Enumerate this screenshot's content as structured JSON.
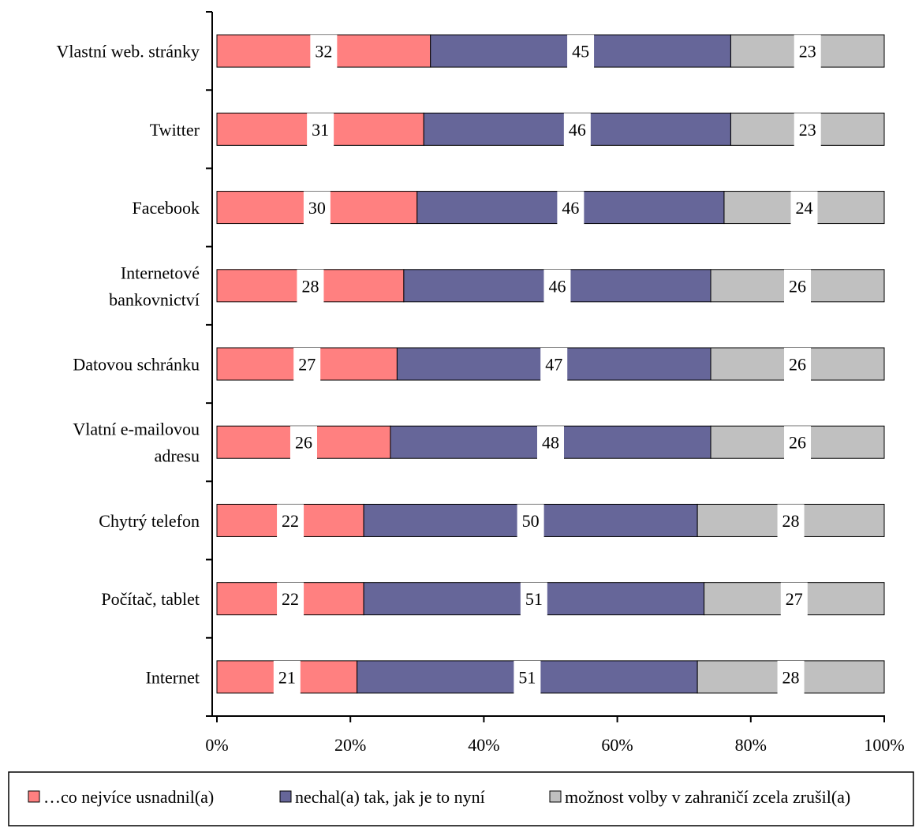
{
  "chart_data": {
    "type": "bar",
    "orientation": "horizontal",
    "stacked": "percent",
    "categories": [
      "Vlastní web. stránky",
      "Twitter",
      "Facebook",
      "Internetové bankovnictví",
      "Datovou schránku",
      "Vlatní e-mailovou adresu",
      "Chytrý telefon",
      "Počítač, tablet",
      "Internet"
    ],
    "category_lines": [
      [
        "Vlastní web. stránky"
      ],
      [
        "Twitter"
      ],
      [
        "Facebook"
      ],
      [
        "Internetové",
        "bankovnictví"
      ],
      [
        "Datovou schránku"
      ],
      [
        "Vlatní e-mailovou",
        "adresu"
      ],
      [
        "Chytrý telefon"
      ],
      [
        "Počítač, tablet"
      ],
      [
        "Internet"
      ]
    ],
    "series": [
      {
        "name": "…co nejvíce usnadnil(a)",
        "color": "#ff8080",
        "values": [
          32,
          31,
          30,
          28,
          27,
          26,
          22,
          22,
          21
        ]
      },
      {
        "name": "nechal(a) tak, jak je to nyní",
        "color": "#666699",
        "values": [
          45,
          46,
          46,
          46,
          47,
          48,
          50,
          51,
          51
        ]
      },
      {
        "name": "možnost volby v zahraničí zcela zrušil(a)",
        "color": "#c0c0c0",
        "values": [
          23,
          23,
          24,
          26,
          26,
          26,
          28,
          27,
          28
        ]
      }
    ],
    "x_ticks": [
      "0%",
      "20%",
      "40%",
      "60%",
      "80%",
      "100%"
    ],
    "xlim": [
      0,
      100
    ],
    "grid": false,
    "legend_position": "bottom"
  }
}
